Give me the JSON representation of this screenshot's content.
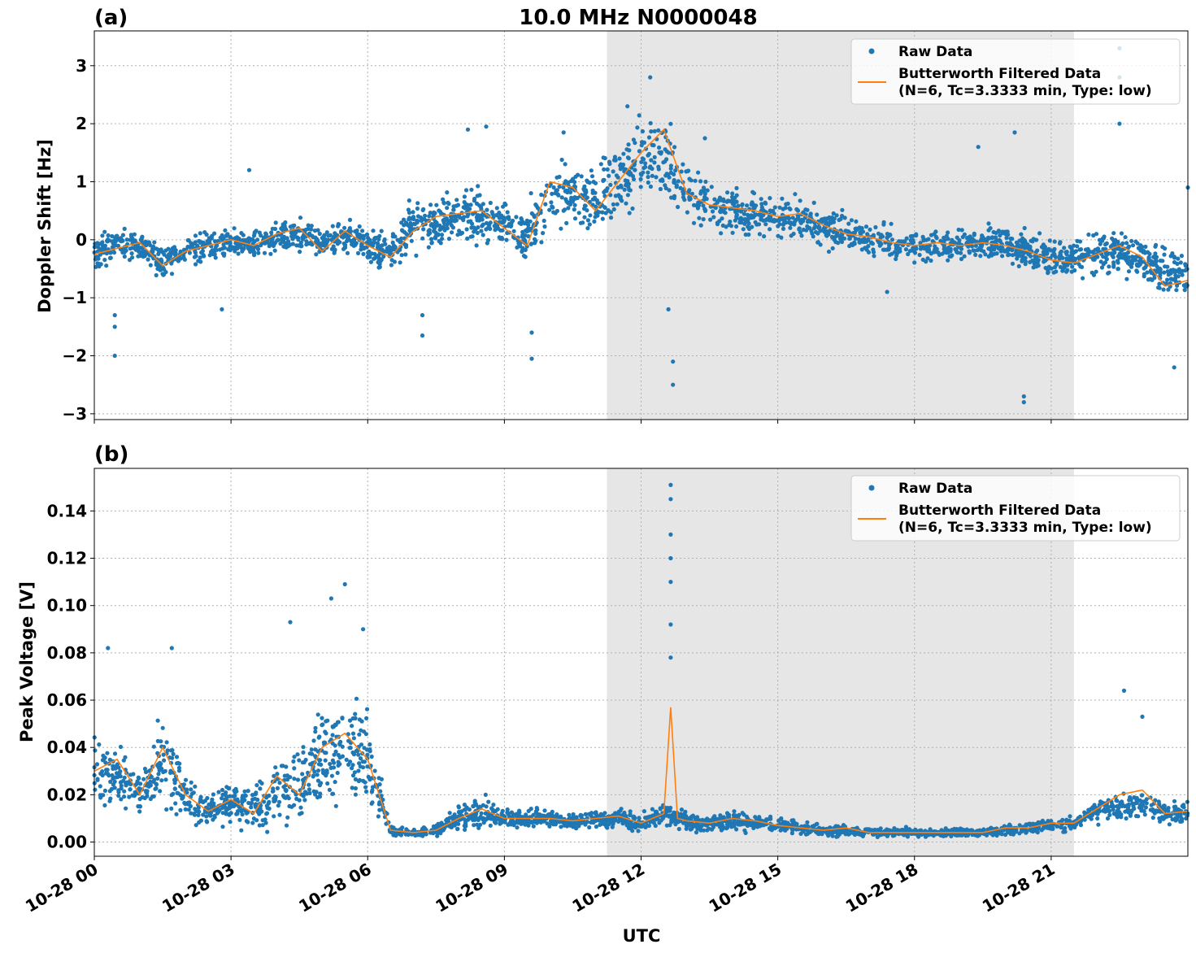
{
  "figure_title": "10.0 MHz N0000048",
  "x_axis_label": "UTC",
  "colors": {
    "raw": "#1f77b4",
    "filtered": "#ff7f0e",
    "night_shade": "#e6e6e6",
    "grid": "#b0b0b0"
  },
  "chart_data": [
    {
      "type": "scatter",
      "panel_label": "(a)",
      "title": "10.0 MHz N0000048",
      "xlabel": "",
      "ylabel": "Doppler Shift [Hz]",
      "xlim": [
        "10-28 00:00",
        "10-29 00:00"
      ],
      "ylim": [
        -3.1,
        3.6
      ],
      "x_ticks": [
        "10-28 00",
        "10-28 03",
        "10-28 06",
        "10-28 09",
        "10-28 12",
        "10-28 15",
        "10-28 18",
        "10-28 21"
      ],
      "y_ticks": [
        {
          "value": 3,
          "label": "3"
        },
        {
          "value": 2,
          "label": "2"
        },
        {
          "value": 1,
          "label": "1"
        },
        {
          "value": 0,
          "label": "0"
        },
        {
          "value": -1,
          "label": "−1"
        },
        {
          "value": -2,
          "label": "−2"
        },
        {
          "value": -3,
          "label": "−3"
        }
      ],
      "grid": true,
      "shaded_interval": [
        "10-28 11:15",
        "10-28 21:30"
      ],
      "legend_placement": "top-right",
      "legend": [
        "Raw Data",
        "Butterworth Filtered Data",
        "(N=6, Tc=3.3333 min, Type: low)"
      ],
      "series": [
        {
          "name": "Raw Data",
          "kind": "points",
          "x_hours": [
            0,
            0.5,
            1,
            1.5,
            2,
            2.5,
            3,
            3.5,
            4,
            4.5,
            5,
            5.5,
            6,
            6.5,
            7,
            7.5,
            8,
            8.5,
            9,
            9.5,
            10,
            10.5,
            11,
            11.5,
            12,
            12.5,
            13,
            13.5,
            14,
            14.5,
            15,
            15.5,
            16,
            16.5,
            17,
            17.5,
            18,
            18.5,
            19,
            19.5,
            20,
            20.5,
            21,
            21.5,
            22,
            22.5,
            23,
            23.5,
            24
          ],
          "y_center": [
            -0.2,
            -0.1,
            -0.1,
            -0.4,
            -0.2,
            -0.1,
            -0.05,
            -0.1,
            0.0,
            0.1,
            -0.1,
            0.1,
            -0.1,
            -0.2,
            0.2,
            0.3,
            0.45,
            0.4,
            0.3,
            0.1,
            0.7,
            0.8,
            0.6,
            1.0,
            1.3,
            1.5,
            0.8,
            0.6,
            0.5,
            0.45,
            0.4,
            0.35,
            0.2,
            0.1,
            0.0,
            -0.05,
            -0.1,
            -0.1,
            -0.1,
            -0.05,
            -0.05,
            -0.2,
            -0.3,
            -0.3,
            -0.2,
            -0.2,
            -0.3,
            -0.6,
            -0.6
          ],
          "y_spread": [
            0.35,
            0.3,
            0.3,
            0.35,
            0.3,
            0.3,
            0.3,
            0.3,
            0.3,
            0.3,
            0.3,
            0.3,
            0.3,
            0.4,
            0.5,
            0.5,
            0.5,
            0.5,
            0.5,
            0.6,
            0.7,
            0.6,
            0.7,
            0.7,
            0.8,
            0.8,
            0.6,
            0.5,
            0.5,
            0.45,
            0.4,
            0.4,
            0.4,
            0.35,
            0.3,
            0.3,
            0.3,
            0.3,
            0.3,
            0.3,
            0.35,
            0.4,
            0.4,
            0.4,
            0.45,
            0.45,
            0.45,
            0.5,
            0.5
          ],
          "outliers": [
            [
              0.45,
              -1.3
            ],
            [
              0.45,
              -1.5
            ],
            [
              0.45,
              -2.0
            ],
            [
              2.8,
              -1.2
            ],
            [
              3.4,
              1.2
            ],
            [
              7.2,
              -1.65
            ],
            [
              7.2,
              -1.3
            ],
            [
              8.2,
              1.9
            ],
            [
              8.6,
              1.95
            ],
            [
              9.6,
              -2.05
            ],
            [
              9.6,
              -1.6
            ],
            [
              10.3,
              1.85
            ],
            [
              11.7,
              2.3
            ],
            [
              12.2,
              2.8
            ],
            [
              12.6,
              -1.2
            ],
            [
              12.7,
              -2.1
            ],
            [
              12.7,
              -2.5
            ],
            [
              13.4,
              1.75
            ],
            [
              17.4,
              -0.9
            ],
            [
              20.4,
              -2.8
            ],
            [
              20.4,
              -2.7
            ],
            [
              20.2,
              1.85
            ],
            [
              19.4,
              1.6
            ],
            [
              22.5,
              3.3
            ],
            [
              22.5,
              2.0
            ],
            [
              22.5,
              2.8
            ],
            [
              23.7,
              -2.2
            ],
            [
              24,
              0.9
            ]
          ]
        },
        {
          "name": "Butterworth Filtered Data",
          "kind": "line",
          "x_hours": [
            0,
            0.5,
            1,
            1.5,
            2,
            2.5,
            3,
            3.5,
            4,
            4.5,
            5,
            5.5,
            6,
            6.5,
            7,
            7.5,
            8,
            8.5,
            9,
            9.5,
            10,
            10.5,
            11,
            11.5,
            12,
            12.5,
            13,
            13.5,
            14,
            14.5,
            15,
            15.5,
            16,
            16.5,
            17,
            17.5,
            18,
            18.5,
            19,
            19.5,
            20,
            20.5,
            21,
            21.5,
            22,
            22.5,
            23,
            23.5,
            24
          ],
          "y": [
            -0.25,
            -0.15,
            -0.05,
            -0.45,
            -0.2,
            -0.1,
            0.0,
            -0.1,
            0.1,
            0.2,
            -0.2,
            0.15,
            -0.1,
            -0.3,
            0.15,
            0.4,
            0.45,
            0.5,
            0.2,
            -0.1,
            1.0,
            0.9,
            0.5,
            1.0,
            1.5,
            1.9,
            0.8,
            0.6,
            0.55,
            0.5,
            0.4,
            0.45,
            0.25,
            0.1,
            0.05,
            -0.05,
            -0.1,
            -0.05,
            -0.1,
            -0.05,
            -0.1,
            -0.2,
            -0.35,
            -0.4,
            -0.25,
            -0.1,
            -0.3,
            -0.8,
            -0.7
          ]
        }
      ]
    },
    {
      "type": "scatter",
      "panel_label": "(b)",
      "xlabel": "UTC",
      "ylabel": "Peak Voltage [V]",
      "xlim": [
        "10-28 00:00",
        "10-29 00:00"
      ],
      "ylim": [
        -0.006,
        0.158
      ],
      "x_ticks": [
        "10-28 00",
        "10-28 03",
        "10-28 06",
        "10-28 09",
        "10-28 12",
        "10-28 15",
        "10-28 18",
        "10-28 21"
      ],
      "y_ticks": [
        {
          "value": 0.14,
          "label": "0.14"
        },
        {
          "value": 0.12,
          "label": "0.12"
        },
        {
          "value": 0.1,
          "label": "0.10"
        },
        {
          "value": 0.08,
          "label": "0.08"
        },
        {
          "value": 0.06,
          "label": "0.06"
        },
        {
          "value": 0.04,
          "label": "0.04"
        },
        {
          "value": 0.02,
          "label": "0.02"
        },
        {
          "value": 0.0,
          "label": "0.00"
        }
      ],
      "grid": true,
      "shaded_interval": [
        "10-28 11:15",
        "10-28 21:30"
      ],
      "legend_placement": "top-right",
      "legend": [
        "Raw Data",
        "Butterworth Filtered Data",
        "(N=6, Tc=3.3333 min, Type: low)"
      ],
      "series": [
        {
          "name": "Raw Data",
          "kind": "points",
          "x_hours": [
            0,
            0.5,
            1,
            1.5,
            2,
            2.5,
            3,
            3.5,
            4,
            4.5,
            5,
            5.5,
            6,
            6.5,
            7,
            7.5,
            8,
            8.5,
            9,
            9.5,
            10,
            10.5,
            11,
            11.5,
            12,
            12.5,
            13,
            13.5,
            14,
            14.5,
            15,
            15.5,
            16,
            16.5,
            17,
            17.5,
            18,
            18.5,
            19,
            19.5,
            20,
            20.5,
            21,
            21.5,
            22,
            22.5,
            23,
            23.5,
            24
          ],
          "y_center": [
            0.032,
            0.028,
            0.02,
            0.034,
            0.02,
            0.013,
            0.016,
            0.014,
            0.02,
            0.024,
            0.036,
            0.042,
            0.035,
            0.005,
            0.004,
            0.005,
            0.01,
            0.013,
            0.01,
            0.01,
            0.01,
            0.009,
            0.01,
            0.01,
            0.008,
            0.012,
            0.009,
            0.008,
            0.009,
            0.008,
            0.007,
            0.006,
            0.005,
            0.005,
            0.004,
            0.004,
            0.004,
            0.004,
            0.004,
            0.004,
            0.005,
            0.006,
            0.007,
            0.008,
            0.013,
            0.014,
            0.016,
            0.012,
            0.012
          ],
          "y_spread": [
            0.018,
            0.015,
            0.01,
            0.02,
            0.012,
            0.008,
            0.01,
            0.01,
            0.014,
            0.02,
            0.025,
            0.025,
            0.022,
            0.003,
            0.002,
            0.003,
            0.006,
            0.007,
            0.004,
            0.004,
            0.004,
            0.004,
            0.004,
            0.005,
            0.004,
            0.006,
            0.005,
            0.004,
            0.005,
            0.004,
            0.004,
            0.003,
            0.003,
            0.003,
            0.002,
            0.002,
            0.002,
            0.002,
            0.002,
            0.002,
            0.003,
            0.003,
            0.003,
            0.004,
            0.006,
            0.008,
            0.008,
            0.006,
            0.006
          ],
          "outliers": [
            [
              0.3,
              0.082
            ],
            [
              1.7,
              0.082
            ],
            [
              4.3,
              0.093
            ],
            [
              5.2,
              0.103
            ],
            [
              5.5,
              0.109
            ],
            [
              5.9,
              0.09
            ],
            [
              12.65,
              0.151
            ],
            [
              12.65,
              0.145
            ],
            [
              12.65,
              0.13
            ],
            [
              12.65,
              0.12
            ],
            [
              12.65,
              0.11
            ],
            [
              12.65,
              0.092
            ],
            [
              12.65,
              0.078
            ],
            [
              22.6,
              0.064
            ],
            [
              23.0,
              0.053
            ]
          ]
        },
        {
          "name": "Butterworth Filtered Data",
          "kind": "line",
          "x_hours": [
            0,
            0.5,
            1,
            1.5,
            2,
            2.5,
            3,
            3.5,
            4,
            4.5,
            5,
            5.5,
            6,
            6.5,
            7,
            7.5,
            8,
            8.5,
            9,
            9.5,
            10,
            10.5,
            11,
            11.5,
            12,
            12.5,
            12.65,
            12.8,
            13,
            13.5,
            14,
            14.5,
            15,
            15.5,
            16,
            16.5,
            17,
            17.5,
            18,
            18.5,
            19,
            19.5,
            20,
            20.5,
            21,
            21.5,
            22,
            22.5,
            23,
            23.5,
            24
          ],
          "y": [
            0.03,
            0.035,
            0.02,
            0.04,
            0.02,
            0.013,
            0.018,
            0.012,
            0.028,
            0.02,
            0.04,
            0.046,
            0.035,
            0.005,
            0.004,
            0.005,
            0.01,
            0.014,
            0.01,
            0.01,
            0.01,
            0.009,
            0.01,
            0.011,
            0.008,
            0.012,
            0.057,
            0.01,
            0.009,
            0.008,
            0.01,
            0.009,
            0.007,
            0.006,
            0.005,
            0.006,
            0.004,
            0.004,
            0.004,
            0.004,
            0.004,
            0.004,
            0.006,
            0.006,
            0.008,
            0.008,
            0.014,
            0.02,
            0.022,
            0.012,
            0.013
          ]
        }
      ]
    }
  ]
}
